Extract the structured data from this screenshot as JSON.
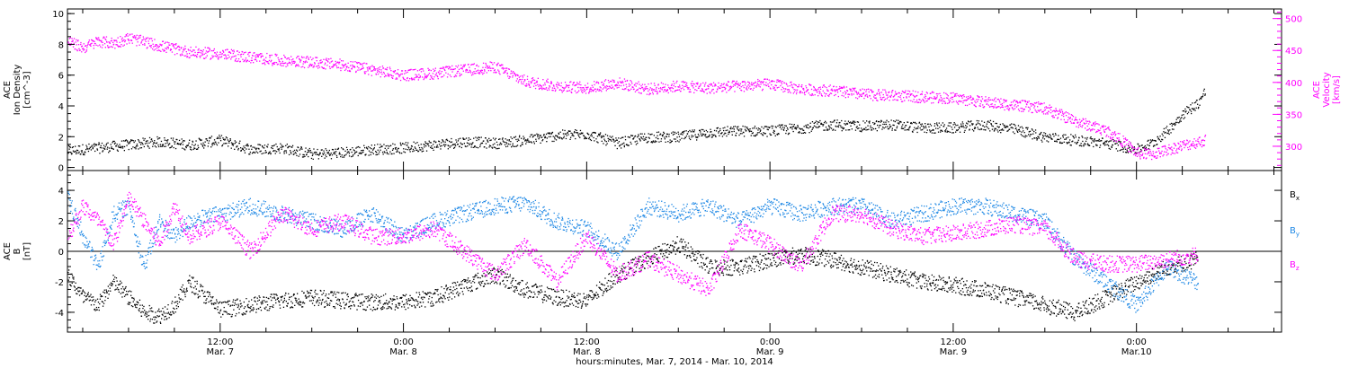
{
  "figure": {
    "xlabel": "hours:minutes, Mar.  7, 2014 - Mar. 10, 2014",
    "x_ticks": [
      {
        "hour": 12,
        "time": "12:00",
        "date": "Mar. 7"
      },
      {
        "hour": 24,
        "time": "0:00",
        "date": "Mar. 8"
      },
      {
        "hour": 36,
        "time": "12:00",
        "date": "Mar. 8"
      },
      {
        "hour": 48,
        "time": "0:00",
        "date": "Mar. 9"
      },
      {
        "hour": 60,
        "time": "12:00",
        "date": "Mar. 9"
      },
      {
        "hour": 72,
        "time": "0:00",
        "date": "Mar.10"
      }
    ],
    "x_range_hours": [
      2.0,
      81.5
    ],
    "colors": {
      "density": "#000000",
      "velocity": "#ff00ff",
      "bx": "#000000",
      "by": "#1e88e5",
      "bz": "#ff00ff"
    }
  },
  "chart_data": [
    {
      "type": "scatter",
      "panel": "plasma",
      "ylabel_lines": [
        "ACE",
        "Ion Density",
        "[cm^-3]"
      ],
      "ylabel_right_lines": [
        "ACE",
        "Velocity",
        "[km/s]"
      ],
      "ylim": [
        -0.2,
        10.3
      ],
      "yticks": [
        0,
        2,
        4,
        6,
        8,
        10
      ],
      "ylim_right": [
        262,
        515
      ],
      "yticks_right": [
        300,
        350,
        400,
        450,
        500
      ],
      "data_end_hour": 76.5,
      "series": [
        {
          "axis": "left",
          "x": [
            2,
            4,
            6,
            8,
            10,
            12,
            14,
            16,
            18,
            20,
            22,
            24,
            26,
            28,
            30,
            32,
            34,
            36,
            38,
            40,
            42,
            44,
            46,
            48,
            50,
            52,
            54,
            56,
            58,
            60,
            62,
            64,
            66,
            68,
            70,
            72,
            73,
            74,
            75,
            76,
            76.5
          ],
          "values": [
            1.1,
            1.3,
            1.5,
            1.7,
            1.5,
            1.8,
            1.2,
            1.3,
            0.9,
            1.0,
            1.2,
            1.3,
            1.5,
            1.7,
            1.6,
            1.8,
            2.1,
            2.2,
            1.6,
            2.0,
            2.0,
            2.3,
            2.4,
            2.4,
            2.6,
            2.8,
            2.7,
            2.8,
            2.6,
            2.6,
            2.8,
            2.5,
            2.0,
            1.8,
            1.6,
            1.2,
            1.6,
            2.4,
            3.5,
            4.2,
            5.0
          ]
        },
        {
          "axis": "right",
          "x": [
            2,
            3,
            4,
            5,
            6,
            8,
            10,
            12,
            14,
            16,
            18,
            20,
            22,
            24,
            26,
            28,
            30,
            32,
            34,
            36,
            38,
            40,
            42,
            44,
            46,
            48,
            50,
            52,
            54,
            56,
            58,
            60,
            62,
            64,
            66,
            68,
            70,
            71,
            72,
            73,
            74,
            75,
            76.5
          ],
          "values": [
            465,
            455,
            465,
            462,
            470,
            458,
            448,
            445,
            440,
            435,
            432,
            428,
            420,
            412,
            415,
            420,
            425,
            402,
            395,
            392,
            400,
            390,
            395,
            392,
            395,
            398,
            390,
            388,
            382,
            380,
            378,
            376,
            370,
            365,
            360,
            340,
            325,
            310,
            290,
            288,
            295,
            302,
            310
          ]
        }
      ]
    },
    {
      "type": "scatter",
      "panel": "magnetic",
      "ylabel_lines": [
        "ACE",
        "B",
        "[nT]"
      ],
      "ylim": [
        -5.3,
        5.3
      ],
      "yticks": [
        -4,
        -2,
        0,
        2,
        4
      ],
      "zero_line": 0,
      "data_end_hour": 76.5,
      "series": [
        {
          "name": "Bx",
          "x": [
            2,
            3,
            4,
            5,
            6,
            7,
            8,
            9,
            10,
            12,
            14,
            16,
            18,
            20,
            22,
            24,
            26,
            28,
            30,
            32,
            34,
            36,
            38,
            40,
            42,
            44,
            46,
            48,
            50,
            52,
            54,
            56,
            58,
            60,
            62,
            64,
            66,
            68,
            70,
            72,
            74,
            76
          ],
          "values": [
            -1.5,
            -3.0,
            -3.5,
            -2.0,
            -3.0,
            -4.0,
            -4.2,
            -3.5,
            -2.0,
            -3.8,
            -3.5,
            -3.2,
            -3.0,
            -3.2,
            -3.3,
            -3.3,
            -3.0,
            -2.2,
            -1.5,
            -2.5,
            -3.0,
            -3.2,
            -1.5,
            -0.5,
            0.5,
            -1.0,
            -1.0,
            -0.5,
            -0.2,
            -0.5,
            -1.0,
            -1.5,
            -2.0,
            -2.2,
            -2.5,
            -3.0,
            -3.5,
            -4.0,
            -3.0,
            -2.0,
            -1.0,
            -0.5
          ]
        },
        {
          "name": "By",
          "x": [
            2,
            3,
            4,
            5,
            6,
            7,
            8,
            9,
            10,
            12,
            14,
            16,
            18,
            20,
            22,
            24,
            26,
            28,
            30,
            32,
            34,
            36,
            38,
            40,
            42,
            44,
            46,
            48,
            50,
            52,
            54,
            56,
            58,
            60,
            62,
            64,
            66,
            68,
            70,
            72,
            74,
            76
          ],
          "values": [
            3.5,
            1.0,
            -1.0,
            2.5,
            3.0,
            -1.0,
            2.0,
            1.0,
            2.0,
            2.5,
            3.0,
            2.5,
            2.0,
            1.5,
            2.5,
            1.0,
            2.0,
            2.5,
            3.0,
            3.2,
            2.0,
            1.5,
            0.0,
            3.0,
            2.5,
            3.0,
            2.0,
            3.0,
            2.5,
            3.0,
            3.0,
            2.0,
            2.5,
            3.0,
            3.0,
            2.5,
            2.0,
            -0.5,
            -2.0,
            -3.5,
            -1.0,
            -2.0
          ]
        },
        {
          "name": "Bz",
          "x": [
            2,
            3,
            4,
            5,
            6,
            7,
            8,
            9,
            10,
            12,
            14,
            16,
            18,
            20,
            22,
            24,
            26,
            28,
            30,
            32,
            34,
            36,
            38,
            40,
            42,
            44,
            46,
            48,
            50,
            52,
            54,
            56,
            58,
            60,
            62,
            64,
            66,
            68,
            70,
            72,
            74,
            76
          ],
          "values": [
            1.0,
            3.0,
            2.0,
            0.5,
            3.5,
            2.0,
            0.5,
            3.0,
            1.0,
            2.0,
            0.0,
            2.5,
            1.5,
            2.0,
            1.0,
            1.0,
            1.5,
            0.0,
            -1.5,
            0.5,
            -2.0,
            1.0,
            -1.5,
            -0.5,
            -1.5,
            -2.5,
            1.5,
            0.5,
            -1.0,
            2.5,
            2.5,
            1.5,
            1.0,
            1.2,
            1.5,
            1.8,
            1.5,
            -0.5,
            -0.8,
            -0.8,
            -0.5,
            -0.2
          ]
        }
      ]
    }
  ]
}
